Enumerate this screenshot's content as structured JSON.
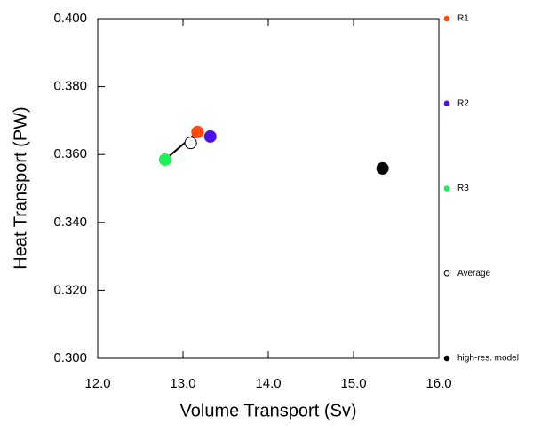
{
  "chart_data": {
    "type": "scatter",
    "xlabel": "Volume Transport (Sv)",
    "ylabel": "Heat Transport (PW)",
    "xlim": [
      12,
      16
    ],
    "ylim": [
      0.3,
      0.4
    ],
    "xticks": [
      {
        "value": 12,
        "label": "12.0"
      },
      {
        "value": 13,
        "label": "13.0"
      },
      {
        "value": 14,
        "label": "14.0"
      },
      {
        "value": 15,
        "label": "15.0"
      },
      {
        "value": 16,
        "label": "16.0"
      }
    ],
    "yticks": [
      {
        "value": 0.3,
        "label": "0.300"
      },
      {
        "value": 0.32,
        "label": "0.320"
      },
      {
        "value": 0.34,
        "label": "0.340"
      },
      {
        "value": 0.36,
        "label": "0.360"
      },
      {
        "value": 0.38,
        "label": "0.380"
      },
      {
        "value": 0.4,
        "label": "0.400"
      }
    ],
    "series": [
      {
        "name": "R1",
        "color": "#ff4a0a",
        "filled": true,
        "x": [
          13.17
        ],
        "y": [
          0.3666
        ]
      },
      {
        "name": "R2",
        "color": "#4a12e6",
        "filled": true,
        "x": [
          13.32
        ],
        "y": [
          0.3653
        ]
      },
      {
        "name": "R3",
        "color": "#1ef05a",
        "filled": true,
        "x": [
          12.79
        ],
        "y": [
          0.3585
        ]
      },
      {
        "name": "Average",
        "color": "#000000",
        "filled": false,
        "x": [
          13.09
        ],
        "y": [
          0.3634
        ]
      },
      {
        "name": "high-res. model",
        "color": "#000000",
        "filled": true,
        "x": [
          15.34
        ],
        "y": [
          0.3559
        ]
      }
    ]
  }
}
